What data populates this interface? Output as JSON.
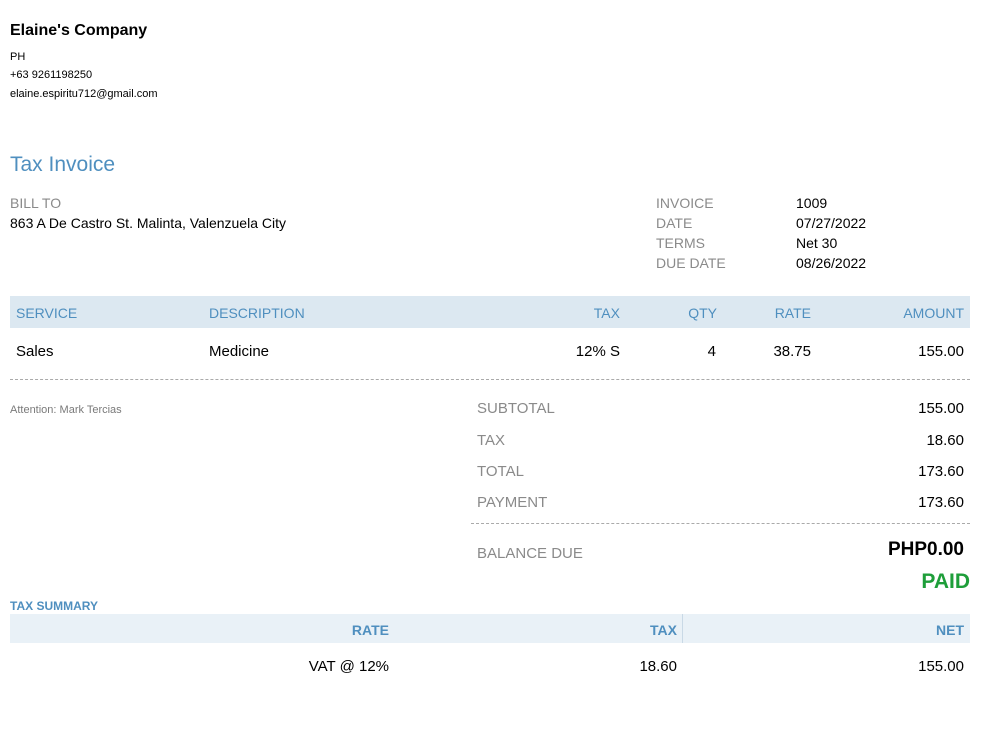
{
  "company": {
    "name": "Elaine's Company",
    "country": "PH",
    "phone": "+63 9261198250",
    "email": "elaine.espiritu712@gmail.com"
  },
  "document_title": "Tax Invoice",
  "bill_to": {
    "label": "BILL TO",
    "address": "863 A De Castro St. Malinta, Valenzuela City"
  },
  "invoice_meta": [
    {
      "label": "INVOICE",
      "value": "1009"
    },
    {
      "label": "DATE",
      "value": "07/27/2022"
    },
    {
      "label": "TERMS",
      "value": "Net 30"
    },
    {
      "label": "DUE DATE",
      "value": "08/26/2022"
    }
  ],
  "items_table": {
    "headers": {
      "service": "SERVICE",
      "description": "DESCRIPTION",
      "tax": "TAX",
      "qty": "QTY",
      "rate": "RATE",
      "amount": "AMOUNT"
    },
    "rows": [
      {
        "service": "Sales",
        "description": "Medicine",
        "tax": "12% S",
        "qty": "4",
        "rate": "38.75",
        "amount": "155.00"
      }
    ]
  },
  "attention": "Attention: Mark Tercias",
  "totals": [
    {
      "label": "SUBTOTAL",
      "value": "155.00"
    },
    {
      "label": "TAX",
      "value": "18.60"
    },
    {
      "label": "TOTAL",
      "value": "173.60"
    },
    {
      "label": "PAYMENT",
      "value": "173.60"
    }
  ],
  "balance_due": {
    "label": "BALANCE DUE",
    "value": "PHP0.00"
  },
  "status": "PAID",
  "tax_summary": {
    "title": "TAX SUMMARY",
    "headers": {
      "rate": "RATE",
      "tax": "TAX",
      "net": "NET"
    },
    "rows": [
      {
        "rate": "VAT @ 12%",
        "tax": "18.60",
        "net": "155.00"
      }
    ]
  },
  "colors": {
    "accent": "#4f8fbf",
    "header_bg": "#dce8f1",
    "paid": "#1e9e3a"
  }
}
